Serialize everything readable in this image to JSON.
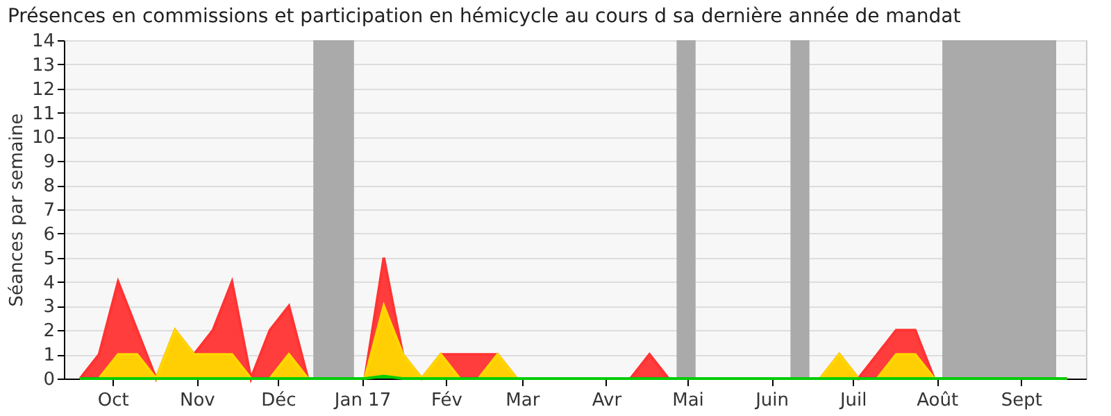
{
  "chart_data": {
    "type": "area",
    "title": "Présences en commissions et participation en hémicycle au cours d sa dernière année de mandat",
    "ylabel": "Séances par semaine",
    "x": [
      "2016-09-19",
      "2016-09-26",
      "2016-10-03",
      "2016-10-10",
      "2016-10-17",
      "2016-10-24",
      "2016-10-31",
      "2016-11-07",
      "2016-11-14",
      "2016-11-21",
      "2016-11-28",
      "2016-12-05",
      "2016-12-12",
      "2016-12-19",
      "2016-12-26",
      "2017-01-02",
      "2017-01-09",
      "2017-01-16",
      "2017-01-23",
      "2017-01-30",
      "2017-02-06",
      "2017-02-13",
      "2017-02-20",
      "2017-02-27",
      "2017-03-06",
      "2017-03-13",
      "2017-03-20",
      "2017-03-27",
      "2017-04-03",
      "2017-04-10",
      "2017-04-17",
      "2017-04-24",
      "2017-05-01",
      "2017-05-08",
      "2017-05-15",
      "2017-05-22",
      "2017-05-29",
      "2017-06-05",
      "2017-06-12",
      "2017-06-19",
      "2017-06-26",
      "2017-07-03",
      "2017-07-10",
      "2017-07-17",
      "2017-07-24",
      "2017-07-31",
      "2017-08-07",
      "2017-08-14",
      "2017-08-21",
      "2017-08-28",
      "2017-09-04",
      "2017-09-11",
      "2017-09-18"
    ],
    "series": [
      {
        "color": "#ff3333",
        "values": [
          0,
          1,
          4,
          2,
          0,
          2,
          1,
          2,
          4,
          0,
          2,
          3,
          0,
          0,
          0,
          0,
          5,
          1,
          0,
          1,
          1,
          1,
          1,
          0,
          0,
          0,
          0,
          0,
          0,
          0,
          1,
          0,
          0,
          0,
          0,
          0,
          0,
          0,
          0,
          0,
          1,
          0,
          1,
          2,
          2,
          0,
          0,
          0,
          0,
          0,
          0,
          0,
          0
        ]
      },
      {
        "color": "#ffd700",
        "values": [
          0,
          0,
          1,
          1,
          0,
          2,
          1,
          1,
          1,
          0,
          0,
          1,
          0,
          0,
          0,
          0,
          3,
          1,
          0,
          1,
          0,
          0,
          1,
          0,
          0,
          0,
          0,
          0,
          0,
          0,
          0,
          0,
          0,
          0,
          0,
          0,
          0,
          0,
          0,
          0,
          1,
          0,
          0,
          1,
          1,
          0,
          0,
          0,
          0,
          0,
          0,
          0,
          0
        ]
      },
      {
        "color": "#00cc00",
        "values": [
          0,
          0,
          0,
          0,
          0,
          0,
          0,
          0,
          0,
          0,
          0,
          0,
          0,
          0,
          0,
          0,
          0.1,
          0,
          0,
          0,
          0,
          0,
          0,
          0,
          0,
          0,
          0,
          0,
          0,
          0,
          0,
          0,
          0,
          0,
          0,
          0,
          0,
          0,
          0,
          0,
          0,
          0,
          0,
          0,
          0,
          0,
          0,
          0,
          0,
          0,
          0,
          0,
          0
        ]
      }
    ],
    "bands": [
      {
        "axis": "x",
        "from": "2016-12-14",
        "to": "2016-12-29",
        "color": "#aaaaaa"
      },
      {
        "axis": "x",
        "from": "2017-04-27",
        "to": "2017-05-04",
        "color": "#aaaaaa"
      },
      {
        "axis": "x",
        "from": "2017-06-08",
        "to": "2017-06-15",
        "color": "#aaaaaa"
      },
      {
        "axis": "x",
        "from": "2017-08-03",
        "to": "2017-09-14",
        "color": "#aaaaaa"
      }
    ],
    "xlim": [
      "2016-09-13",
      "2017-09-25"
    ],
    "xticks": [
      {
        "value": "2016-10-01",
        "label": "Oct"
      },
      {
        "value": "2016-11-01",
        "label": "Nov"
      },
      {
        "value": "2016-12-01",
        "label": "Déc"
      },
      {
        "value": "2017-01-01",
        "label": "Jan 17"
      },
      {
        "value": "2017-02-01",
        "label": "Fév"
      },
      {
        "value": "2017-03-01",
        "label": "Mar"
      },
      {
        "value": "2017-04-01",
        "label": "Avr"
      },
      {
        "value": "2017-05-01",
        "label": "Mai"
      },
      {
        "value": "2017-06-01",
        "label": "Juin"
      },
      {
        "value": "2017-07-01",
        "label": "Juil"
      },
      {
        "value": "2017-08-01",
        "label": "Août"
      },
      {
        "value": "2017-09-01",
        "label": "Sept"
      }
    ],
    "ylim": [
      0,
      14
    ],
    "yticks": [
      0,
      1,
      2,
      3,
      4,
      5,
      6,
      7,
      8,
      9,
      10,
      11,
      12,
      13,
      14
    ],
    "grid": "y"
  }
}
